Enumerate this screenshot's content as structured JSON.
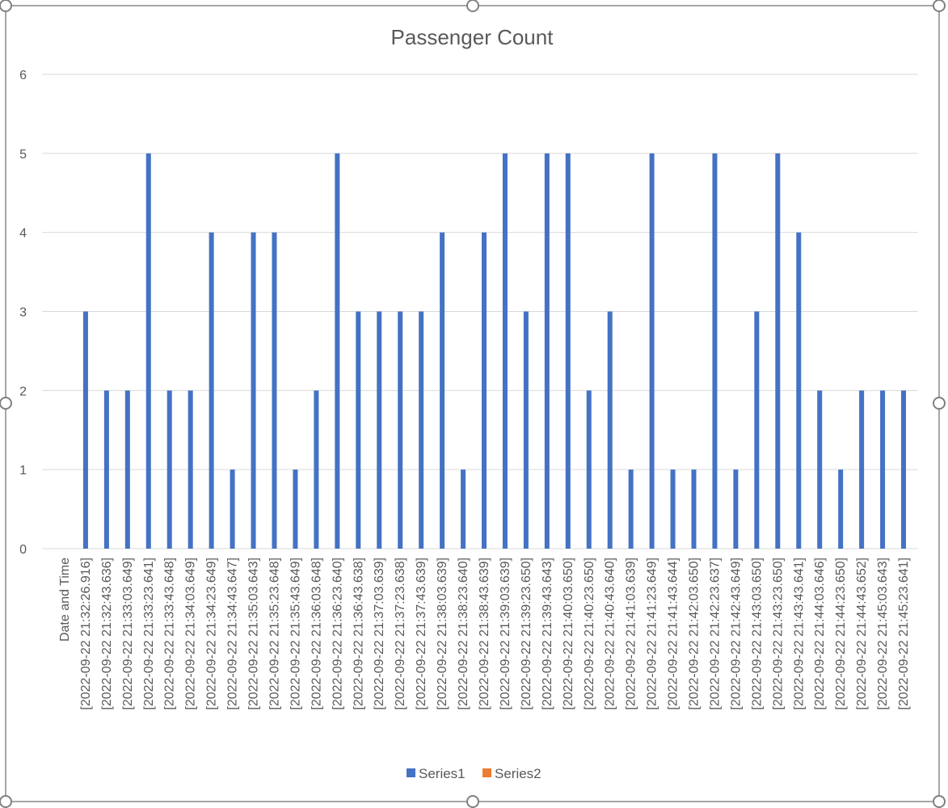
{
  "chart_data": {
    "type": "bar",
    "title": "Passenger Count",
    "xlabel": "",
    "ylabel": "",
    "ylim": [
      0,
      6
    ],
    "yticks": [
      0,
      1,
      2,
      3,
      4,
      5,
      6
    ],
    "grid": true,
    "legend_position": "bottom",
    "categories": [
      "Date and Time",
      "[2022-09-22 21:32:26.916]",
      "[2022-09-22 21:32:43.636]",
      "[2022-09-22 21:33:03.649]",
      "[2022-09-22 21:33:23.641]",
      "[2022-09-22 21:33:43.648]",
      "[2022-09-22 21:34:03.649]",
      "[2022-09-22 21:34:23.649]",
      "[2022-09-22 21:34:43.647]",
      "[2022-09-22 21:35:03.643]",
      "[2022-09-22 21:35:23.648]",
      "[2022-09-22 21:35:43.649]",
      "[2022-09-22 21:36:03.648]",
      "[2022-09-22 21:36:23.640]",
      "[2022-09-22 21:36:43.638]",
      "[2022-09-22 21:37:03.639]",
      "[2022-09-22 21:37:23.638]",
      "[2022-09-22 21:37:43.639]",
      "[2022-09-22 21:38:03.639]",
      "[2022-09-22 21:38:23.640]",
      "[2022-09-22 21:38:43.639]",
      "[2022-09-22 21:39:03.639]",
      "[2022-09-22 21:39:23.650]",
      "[2022-09-22 21:39:43.643]",
      "[2022-09-22 21:40:03.650]",
      "[2022-09-22 21:40:23.650]",
      "[2022-09-22 21:40:43.640]",
      "[2022-09-22 21:41:03.639]",
      "[2022-09-22 21:41:23.649]",
      "[2022-09-22 21:41:43.644]",
      "[2022-09-22 21:42:03.650]",
      "[2022-09-22 21:42:23.637]",
      "[2022-09-22 21:42:43.649]",
      "[2022-09-22 21:43:03.650]",
      "[2022-09-22 21:43:23.650]",
      "[2022-09-22 21:43:43.641]",
      "[2022-09-22 21:44:03.646]",
      "[2022-09-22 21:44:23.650]",
      "[2022-09-22 21:44:43.652]",
      "[2022-09-22 21:45:03.643]",
      "[2022-09-22 21:45:23.641]"
    ],
    "series": [
      {
        "name": "Series1",
        "color": "#4472c4",
        "values": [
          null,
          3,
          2,
          2,
          5,
          2,
          2,
          4,
          1,
          4,
          4,
          1,
          2,
          5,
          3,
          3,
          3,
          3,
          4,
          1,
          4,
          5,
          3,
          5,
          5,
          2,
          3,
          1,
          5,
          1,
          1,
          5,
          1,
          3,
          5,
          4,
          2,
          1,
          2,
          2,
          2
        ]
      },
      {
        "name": "Series2",
        "color": "#ed7d31",
        "values": [
          null,
          null,
          null,
          null,
          null,
          null,
          null,
          null,
          null,
          null,
          null,
          null,
          null,
          null,
          null,
          null,
          null,
          null,
          null,
          null,
          null,
          null,
          null,
          null,
          null,
          null,
          null,
          null,
          null,
          null,
          null,
          null,
          null,
          null,
          null,
          null,
          null,
          null,
          null,
          null,
          null
        ]
      }
    ]
  }
}
